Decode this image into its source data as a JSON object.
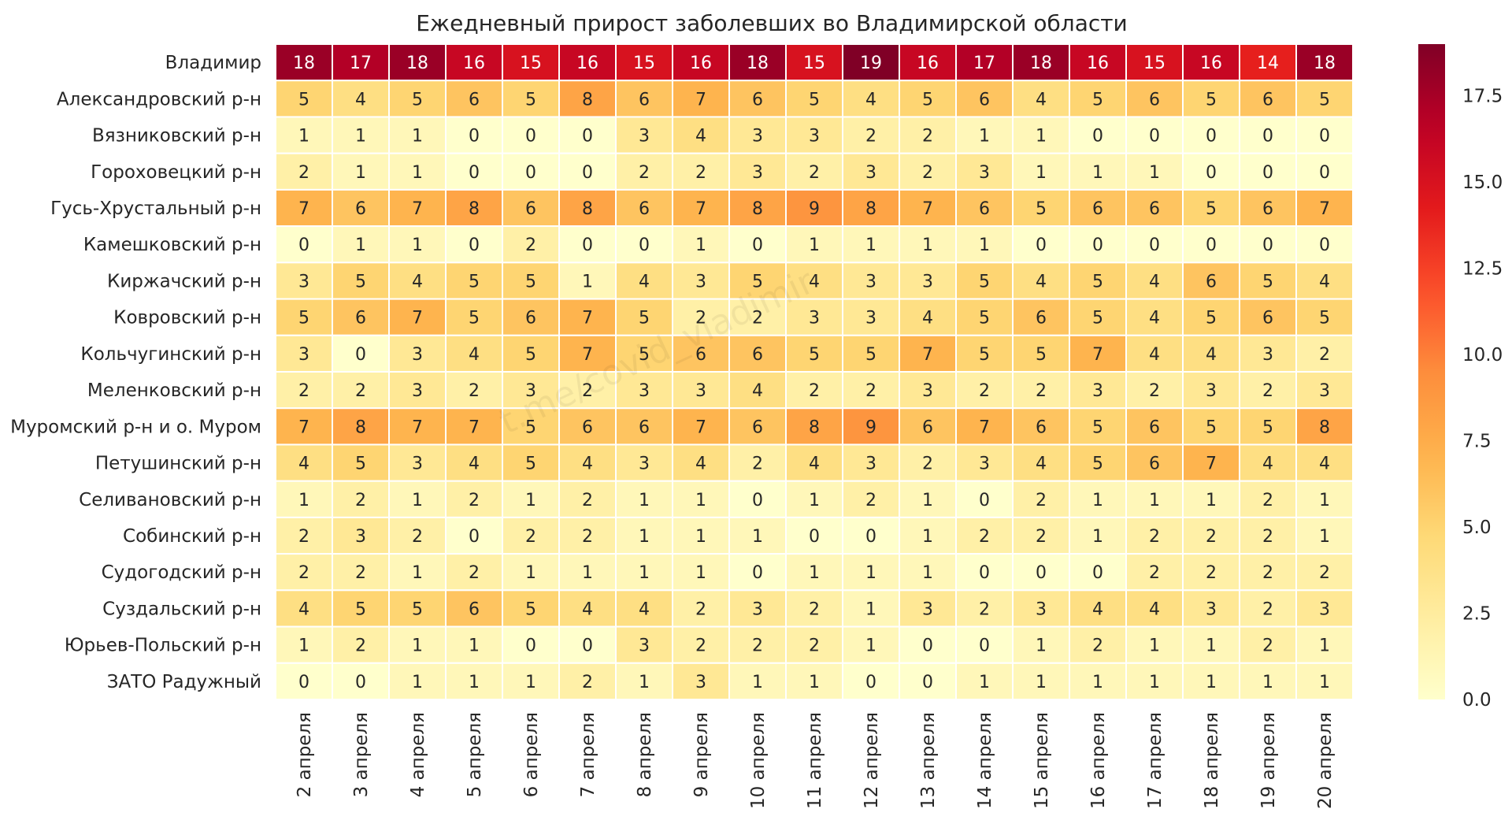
{
  "chart_data": {
    "type": "heatmap",
    "title": "Ежедневный прирост заболевших во Владимирской области",
    "rows": [
      "Владимир",
      "Александровский р-н",
      "Вязниковский р-н",
      "Гороховецкий р-н",
      "Гусь-Хрустальный р-н",
      "Камешковский р-н",
      "Киржачский р-н",
      "Ковровский р-н",
      "Кольчугинский р-н",
      "Меленковский р-н",
      "Муромский р-н и о. Муром",
      "Петушинский р-н",
      "Селивановский р-н",
      "Собинский р-н",
      "Судогодский р-н",
      "Суздальский р-н",
      "Юрьев-Польский р-н",
      "ЗАТО Радужный"
    ],
    "columns": [
      "2 апреля",
      "3 апреля",
      "4 апреля",
      "5 апреля",
      "6 апреля",
      "7 апреля",
      "8 апреля",
      "9 апреля",
      "10 апреля",
      "11 апреля",
      "12 апреля",
      "13 апреля",
      "14 апреля",
      "15 апреля",
      "16 апреля",
      "17 апреля",
      "18 апреля",
      "19 апреля",
      "20 апреля"
    ],
    "values": [
      [
        18,
        17,
        18,
        16,
        15,
        16,
        15,
        16,
        18,
        15,
        19,
        16,
        17,
        18,
        16,
        15,
        16,
        14,
        18
      ],
      [
        5,
        4,
        5,
        6,
        5,
        8,
        6,
        7,
        6,
        5,
        4,
        5,
        6,
        4,
        5,
        6,
        5,
        6,
        5
      ],
      [
        1,
        1,
        1,
        0,
        0,
        0,
        3,
        4,
        3,
        3,
        2,
        2,
        1,
        1,
        0,
        0,
        0,
        0,
        0
      ],
      [
        2,
        1,
        1,
        0,
        0,
        0,
        2,
        2,
        3,
        2,
        3,
        2,
        3,
        1,
        1,
        1,
        0,
        0,
        0
      ],
      [
        7,
        6,
        7,
        8,
        6,
        8,
        6,
        7,
        8,
        9,
        8,
        7,
        6,
        5,
        6,
        6,
        5,
        6,
        7
      ],
      [
        0,
        1,
        1,
        0,
        2,
        0,
        0,
        1,
        0,
        1,
        1,
        1,
        1,
        0,
        0,
        0,
        0,
        0,
        0
      ],
      [
        3,
        5,
        4,
        5,
        5,
        1,
        4,
        3,
        5,
        4,
        3,
        3,
        5,
        4,
        5,
        4,
        6,
        5,
        4
      ],
      [
        5,
        6,
        7,
        5,
        6,
        7,
        5,
        2,
        2,
        3,
        3,
        4,
        5,
        6,
        5,
        4,
        5,
        6,
        5
      ],
      [
        3,
        0,
        3,
        4,
        5,
        7,
        5,
        6,
        6,
        5,
        5,
        7,
        5,
        5,
        7,
        4,
        4,
        3,
        2
      ],
      [
        2,
        2,
        3,
        2,
        3,
        2,
        3,
        3,
        4,
        2,
        2,
        3,
        2,
        2,
        3,
        2,
        3,
        2,
        3
      ],
      [
        7,
        8,
        7,
        7,
        5,
        6,
        6,
        7,
        6,
        8,
        9,
        6,
        7,
        6,
        5,
        6,
        5,
        5,
        8
      ],
      [
        4,
        5,
        3,
        4,
        5,
        4,
        3,
        4,
        2,
        4,
        3,
        2,
        3,
        4,
        5,
        6,
        7,
        4,
        4
      ],
      [
        1,
        2,
        1,
        2,
        1,
        2,
        1,
        1,
        0,
        1,
        2,
        1,
        0,
        2,
        1,
        1,
        1,
        2,
        1
      ],
      [
        2,
        3,
        2,
        0,
        2,
        2,
        1,
        1,
        1,
        0,
        0,
        1,
        2,
        2,
        1,
        2,
        2,
        2,
        1
      ],
      [
        2,
        2,
        1,
        2,
        1,
        1,
        1,
        1,
        0,
        1,
        1,
        1,
        0,
        0,
        0,
        2,
        2,
        2,
        2
      ],
      [
        4,
        5,
        5,
        6,
        5,
        4,
        4,
        2,
        3,
        2,
        1,
        3,
        2,
        3,
        4,
        4,
        3,
        2,
        3
      ],
      [
        1,
        2,
        1,
        1,
        0,
        0,
        3,
        2,
        2,
        2,
        1,
        0,
        0,
        1,
        2,
        1,
        1,
        2,
        1
      ],
      [
        0,
        0,
        1,
        1,
        1,
        2,
        1,
        3,
        1,
        1,
        0,
        0,
        1,
        1,
        1,
        1,
        1,
        1,
        1
      ]
    ],
    "vmin": 0,
    "vmax": 19,
    "colormap": "YlOrRd",
    "colorbar_ticks": [
      "0.0",
      "2.5",
      "5.0",
      "7.5",
      "10.0",
      "12.5",
      "15.0",
      "17.5"
    ],
    "watermark": "t.me/covid_vladimir"
  }
}
